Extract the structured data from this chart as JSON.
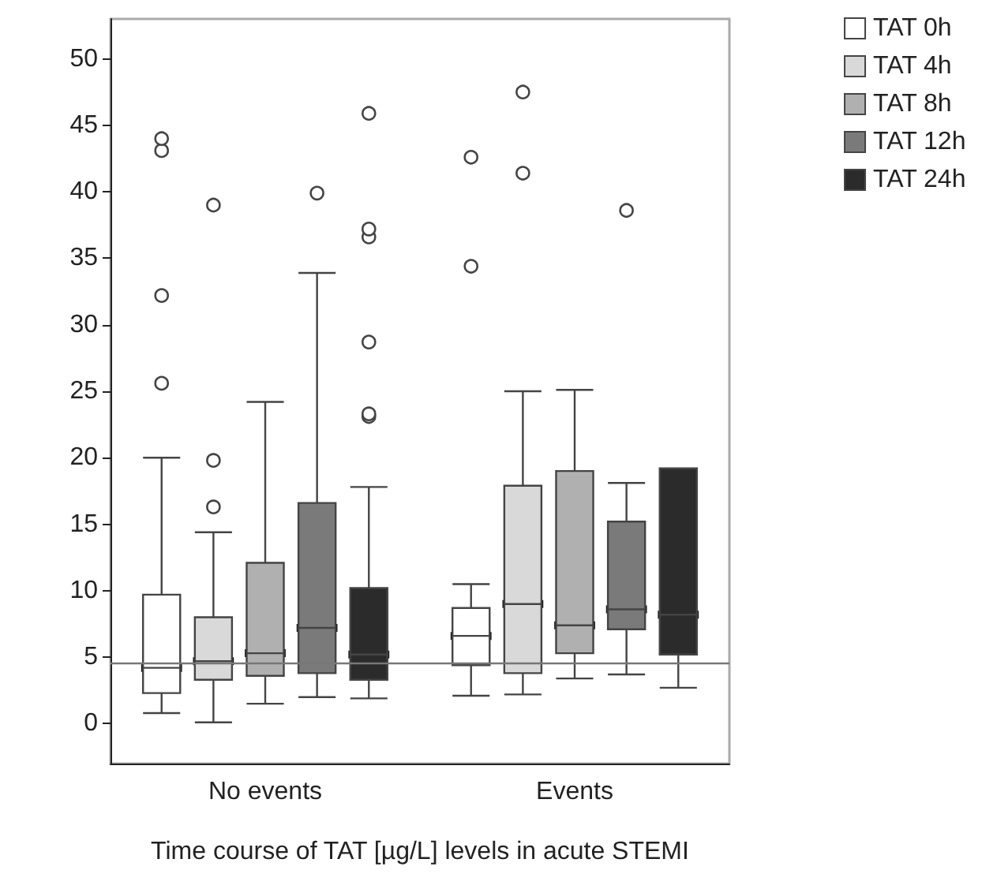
{
  "chart_data": {
    "type": "box",
    "xlabel": "Time course of TAT [µg/L] levels in acute STEMI",
    "categories": [
      "No events",
      "Events"
    ],
    "ylim": [
      -3,
      53
    ],
    "yticks": [
      0,
      5,
      10,
      15,
      20,
      25,
      30,
      35,
      40,
      45,
      50
    ],
    "grid": false,
    "legend": "top right",
    "ref_lines": [
      {
        "axis": "y",
        "value": 4.6,
        "color": "#777777"
      }
    ],
    "series": [
      {
        "name": "TAT 0h",
        "color": "#ffffff",
        "boxes": [
          {
            "low": 0.8,
            "q1": 2.3,
            "median": 4.2,
            "q3": 9.7,
            "high": 20,
            "outliers": [
              25.6,
              32.2,
              43.1,
              44
            ]
          },
          {
            "low": 2.1,
            "q1": 4.4,
            "median": 6.6,
            "q3": 8.7,
            "high": 10.5,
            "outliers": [
              34.4,
              42.6
            ]
          }
        ]
      },
      {
        "name": "TAT 4h",
        "color": "#d9d9d9",
        "boxes": [
          {
            "low": 0.1,
            "q1": 3.3,
            "median": 4.7,
            "q3": 8,
            "high": 14.4,
            "outliers": [
              16.3,
              19.8,
              39
            ]
          },
          {
            "low": 2.2,
            "q1": 3.8,
            "median": 9,
            "q3": 17.9,
            "high": 25,
            "outliers": [
              41.4,
              47.5
            ]
          }
        ]
      },
      {
        "name": "TAT 8h",
        "color": "#b0b0b0",
        "boxes": [
          {
            "low": 1.5,
            "q1": 3.6,
            "median": 5.3,
            "q3": 12.1,
            "high": 24.2
          },
          {
            "low": 3.4,
            "q1": 5.3,
            "median": 7.4,
            "q3": 19,
            "high": 25.1
          }
        ]
      },
      {
        "name": "TAT 12h",
        "color": "#7a7a7a",
        "boxes": [
          {
            "low": 2,
            "q1": 3.8,
            "median": 7.2,
            "q3": 16.6,
            "high": 33.9,
            "outliers": [
              39.9
            ]
          },
          {
            "low": 3.7,
            "q1": 7.1,
            "median": 8.6,
            "q3": 15.2,
            "high": 18.1,
            "outliers": [
              38.6
            ]
          }
        ]
      },
      {
        "name": "TAT 24h",
        "color": "#2b2b2b",
        "boxes": [
          {
            "low": 1.9,
            "q1": 3.3,
            "median": 5.2,
            "q3": 10.2,
            "high": 17.8,
            "outliers": [
              23.1,
              23.3,
              28.7,
              36.6,
              37.2,
              45.9
            ]
          },
          {
            "low": 2.7,
            "q1": 5.2,
            "median": 8.2,
            "q3": 19.2,
            "high": 19.2
          }
        ]
      }
    ]
  }
}
